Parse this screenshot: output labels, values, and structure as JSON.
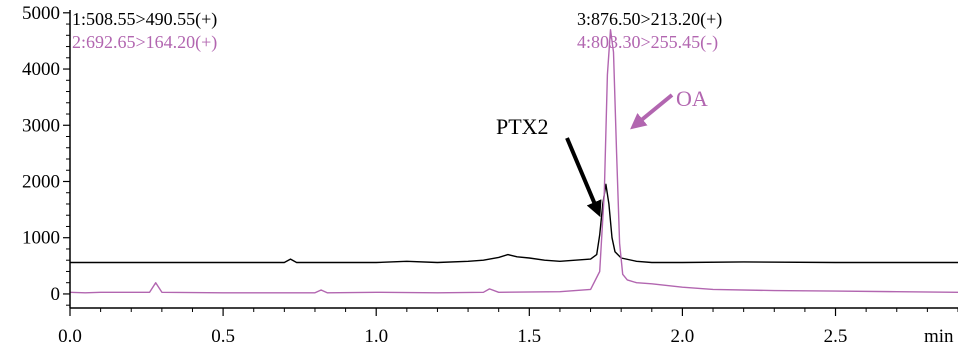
{
  "colors": {
    "axis": "#000000",
    "black_trace": "#000000",
    "purple_trace": "#b266b0"
  },
  "chart_data": {
    "type": "line",
    "title": "",
    "xlabel": "",
    "x_unit_label": "min",
    "ylabel": "",
    "xlim": [
      0.0,
      2.9
    ],
    "ylim": [
      -250,
      5050
    ],
    "x_ticks": [
      0.0,
      0.5,
      1.0,
      1.5,
      2.0,
      2.5
    ],
    "x_tick_labels": [
      "0.0",
      "0.5",
      "1.0",
      "1.5",
      "2.0",
      "2.5"
    ],
    "y_ticks": [
      0,
      1000,
      2000,
      3000,
      4000,
      5000
    ],
    "y_tick_labels": [
      "0",
      "1000",
      "2000",
      "3000",
      "4000",
      "5000"
    ],
    "grid": false,
    "channel_labels": [
      {
        "text": "1:508.55>490.55(+)",
        "color": "#000000"
      },
      {
        "text": "2:692.65>164.20(+)",
        "color": "#b266b0"
      },
      {
        "text": "3:876.50>213.20(+)",
        "color": "#000000"
      },
      {
        "text": "4:803.30>255.45(-)",
        "color": "#b266b0"
      }
    ],
    "annotations": [
      {
        "text": "PTX2",
        "color": "#000000",
        "points_to": {
          "x": 1.75,
          "y": 1650
        }
      },
      {
        "text": "OA",
        "color": "#b266b0",
        "points_to": {
          "x": 1.78,
          "y": 3000
        }
      }
    ],
    "series": [
      {
        "color": "#000000",
        "x": [
          0.0,
          0.3,
          0.6,
          0.7,
          0.72,
          0.74,
          0.8,
          1.0,
          1.1,
          1.2,
          1.3,
          1.35,
          1.4,
          1.43,
          1.46,
          1.5,
          1.55,
          1.6,
          1.65,
          1.7,
          1.72,
          1.73,
          1.74,
          1.75,
          1.76,
          1.77,
          1.78,
          1.8,
          1.85,
          1.9,
          2.0,
          2.2,
          2.5,
          2.7,
          2.9
        ],
        "y": [
          560,
          560,
          560,
          560,
          620,
          560,
          560,
          560,
          580,
          560,
          580,
          600,
          650,
          700,
          660,
          640,
          600,
          580,
          600,
          620,
          700,
          1050,
          1600,
          1950,
          1600,
          1000,
          750,
          640,
          580,
          560,
          560,
          570,
          560,
          560,
          560
        ]
      },
      {
        "color": "#b266b0",
        "x": [
          0.0,
          0.05,
          0.1,
          0.26,
          0.28,
          0.3,
          0.5,
          0.8,
          0.82,
          0.84,
          1.0,
          1.2,
          1.35,
          1.37,
          1.4,
          1.6,
          1.7,
          1.73,
          1.745,
          1.755,
          1.765,
          1.775,
          1.785,
          1.795,
          1.805,
          1.82,
          1.85,
          1.9,
          2.0,
          2.1,
          2.3,
          2.5,
          2.7,
          2.9
        ],
        "y": [
          30,
          20,
          30,
          30,
          200,
          30,
          20,
          20,
          70,
          20,
          30,
          20,
          30,
          90,
          30,
          40,
          80,
          400,
          1800,
          3900,
          4700,
          4300,
          2500,
          900,
          350,
          250,
          200,
          180,
          120,
          80,
          60,
          50,
          40,
          30
        ]
      }
    ]
  }
}
